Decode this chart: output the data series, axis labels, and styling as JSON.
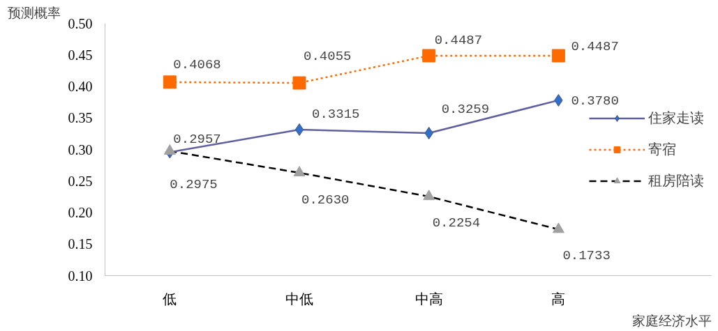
{
  "chart_data": {
    "type": "line",
    "xlabel": "家庭经济水平",
    "ylabel": "预测概率",
    "categories": [
      "低",
      "中低",
      "中高",
      "高"
    ],
    "series": [
      {
        "name": "住家走读",
        "color": "#5f5f9f",
        "colors": [
          "#2e6fd0",
          "#2e6fd0",
          "#2e6fd0",
          "#2e6fd0"
        ],
        "marker": "diamond",
        "line_style": "solid",
        "values": [
          0.2957,
          0.3315,
          0.3259,
          0.378
        ],
        "value_labels": [
          "0.2957",
          "0.3315",
          "0.3259",
          "0.3780"
        ]
      },
      {
        "name": "寄宿",
        "color": "#ff6a00",
        "colors": [
          "#ff6a00",
          "#ff6a00",
          "#ff6a00",
          "#ff6a00"
        ],
        "marker": "square",
        "line_style": "dotted",
        "values": [
          0.4068,
          0.4055,
          0.4487,
          0.4487
        ],
        "value_labels": [
          "0.4068",
          "0.4055",
          "0.4487",
          "0.4487"
        ]
      },
      {
        "name": "租房陪读",
        "color": "#000000",
        "colors": [
          "#a0a0a0",
          "#a0a0a0",
          "#a0a0a0",
          "#a0a0a0"
        ],
        "marker": "triangle",
        "line_style": "dashed",
        "values": [
          0.2975,
          0.263,
          0.2254,
          0.1733
        ],
        "value_labels": [
          "0.2975",
          "0.2630",
          "0.2254",
          "0.1733"
        ]
      }
    ],
    "ylim": [
      0.1,
      0.5
    ],
    "yticks": [
      {
        "value": 0.1,
        "label": "0.10"
      },
      {
        "value": 0.15,
        "label": "0.15"
      },
      {
        "value": 0.2,
        "label": "0.20"
      },
      {
        "value": 0.25,
        "label": "0.25"
      },
      {
        "value": 0.3,
        "label": "0.30"
      },
      {
        "value": 0.35,
        "label": "0.35"
      },
      {
        "value": 0.4,
        "label": "0.40"
      },
      {
        "value": 0.45,
        "label": "0.45"
      },
      {
        "value": 0.5,
        "label": "0.50"
      }
    ],
    "grid": false,
    "legend": "right"
  }
}
